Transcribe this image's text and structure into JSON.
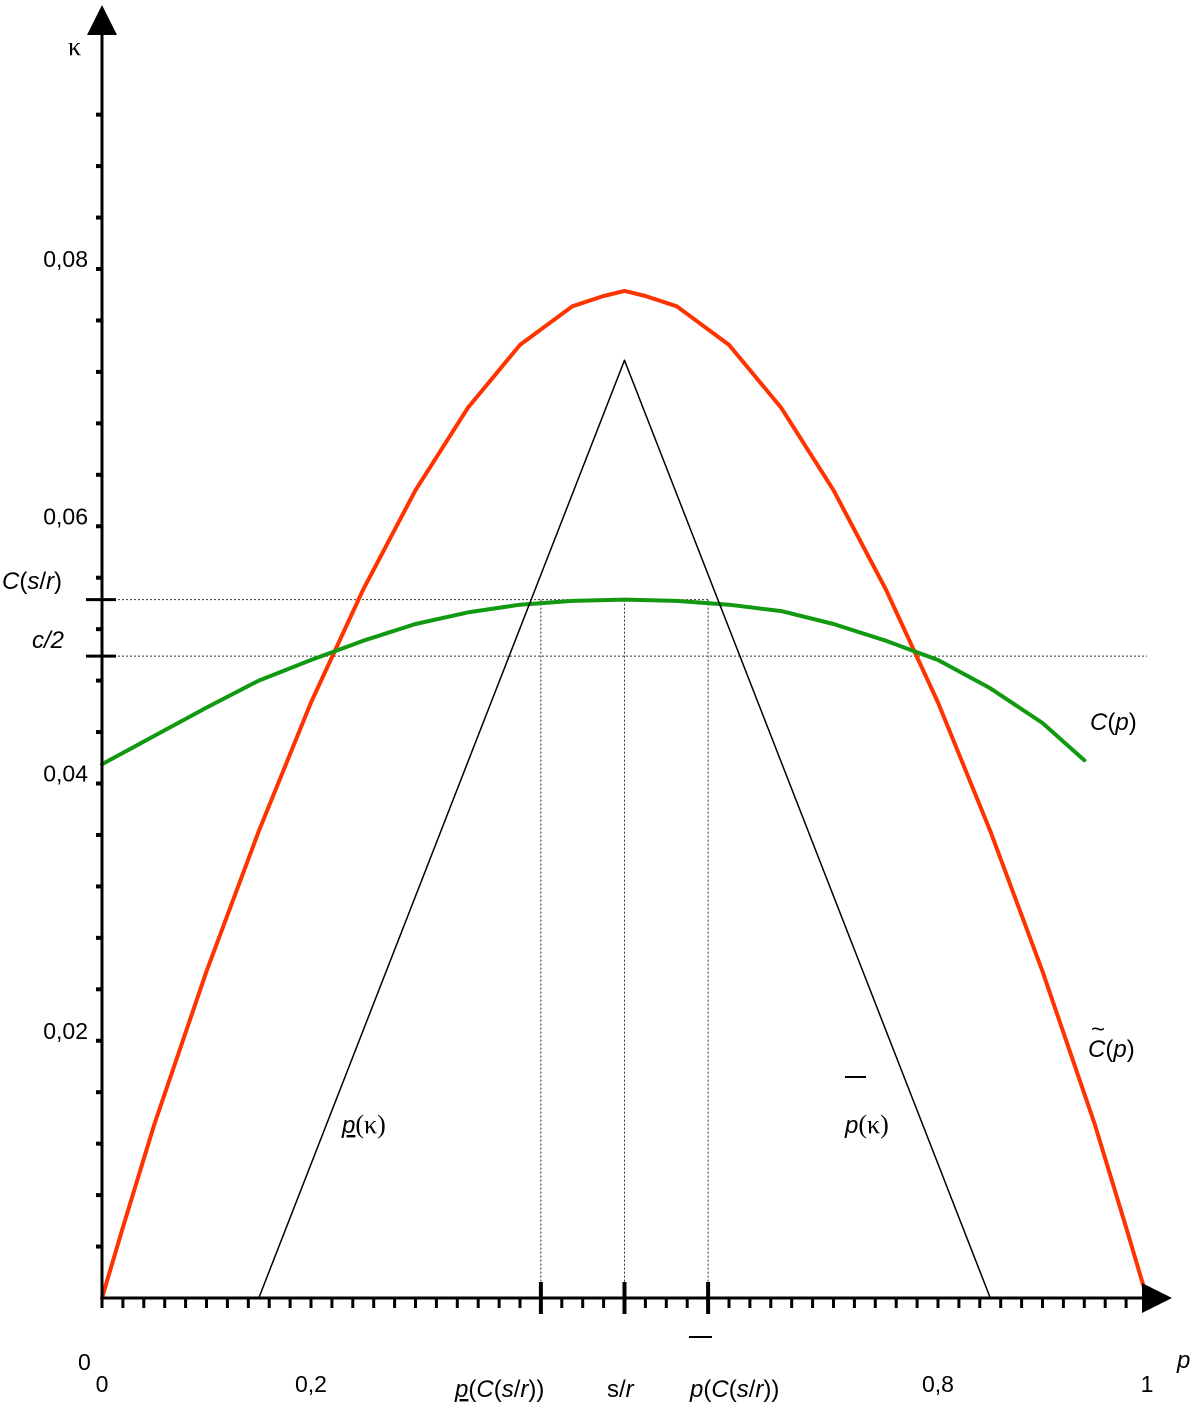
{
  "chart_data": {
    "type": "line",
    "xlabel": "p",
    "ylabel": "κ",
    "xlim": [
      0,
      1
    ],
    "ylim": [
      0,
      0.095
    ],
    "x_ticks": [
      {
        "value": 0,
        "label": "0"
      },
      {
        "value": 0.2,
        "label": "0,2"
      },
      {
        "value": 0.8,
        "label": "0,8"
      },
      {
        "value": 1,
        "label": "1"
      }
    ],
    "y_ticks": [
      {
        "value": 0.02,
        "label": "0,02"
      },
      {
        "value": 0.04,
        "label": "0,04"
      },
      {
        "value": 0.06,
        "label": "0,06"
      },
      {
        "value": 0.08,
        "label": "0,08"
      }
    ],
    "origin_label": "0",
    "minor_x_step": 0.02,
    "minor_y_step": 0.004,
    "special_x": {
      "p_lower": 0.42,
      "s_over_r": 0.5,
      "p_upper": 0.58
    },
    "special_x_labels": {
      "p_lower": {
        "prefix": "p",
        "mid": "(",
        "italic": "C",
        "rest1": "(",
        "italic2": "s",
        "slash": "/",
        "italic3": "r",
        "close": "))"
      },
      "s_over_r": {
        "s": "s",
        "slash": "/",
        "r": "r"
      },
      "p_upper": {
        "prefix": "p",
        "mid": "(",
        "italic": "C",
        "rest1": "(",
        "italic2": "s",
        "slash": "/",
        "italic3": "r",
        "close": "))"
      }
    },
    "special_y": {
      "C_sr": 0.0543,
      "c_half": 0.0499
    },
    "special_y_labels": {
      "C_sr": {
        "C": "C",
        "open": "(",
        "s": "s",
        "slash": "/",
        "r": "r",
        "close": ")"
      },
      "c_half": "c/2"
    },
    "series": [
      {
        "id": "c_tilde",
        "color": "#ff3300",
        "x": [
          0,
          0.02,
          0.05,
          0.1,
          0.15,
          0.2,
          0.25,
          0.3,
          0.35,
          0.4,
          0.45,
          0.48,
          0.5,
          0.52,
          0.55,
          0.6,
          0.65,
          0.7,
          0.75,
          0.8,
          0.85,
          0.9,
          0.95,
          0.98,
          1
        ],
        "y": [
          0,
          0.0055,
          0.0135,
          0.0254,
          0.0363,
          0.0463,
          0.0551,
          0.0628,
          0.0692,
          0.0741,
          0.0771,
          0.0779,
          0.0783,
          0.0779,
          0.0771,
          0.0741,
          0.0692,
          0.0628,
          0.0551,
          0.0463,
          0.0363,
          0.0254,
          0.0135,
          0.0055,
          0
        ]
      },
      {
        "id": "c_green",
        "color": "#119911",
        "x": [
          0,
          0.05,
          0.1,
          0.15,
          0.2,
          0.25,
          0.3,
          0.35,
          0.4,
          0.45,
          0.5,
          0.55,
          0.6,
          0.65,
          0.7,
          0.75,
          0.8,
          0.85,
          0.9,
          0.94
        ],
        "y": [
          0.0415,
          0.0437,
          0.0459,
          0.048,
          0.0496,
          0.0511,
          0.0524,
          0.0533,
          0.0539,
          0.0542,
          0.0543,
          0.0542,
          0.0539,
          0.0534,
          0.0524,
          0.0511,
          0.0496,
          0.0474,
          0.0447,
          0.0418
        ]
      },
      {
        "id": "p_lower_line",
        "color": "#000000",
        "x": [
          0.15,
          0.5
        ],
        "y": [
          0,
          0.0729
        ]
      },
      {
        "id": "p_upper_line",
        "color": "#000000",
        "x": [
          0.5,
          0.85
        ],
        "y": [
          0.0729,
          0
        ]
      }
    ],
    "curve_labels": {
      "C": "C",
      "open": "(",
      "p": "p",
      "close": ")",
      "tilde": "~",
      "p_under": "p",
      "kappa_paren": "(κ)",
      "bar": "—"
    }
  }
}
